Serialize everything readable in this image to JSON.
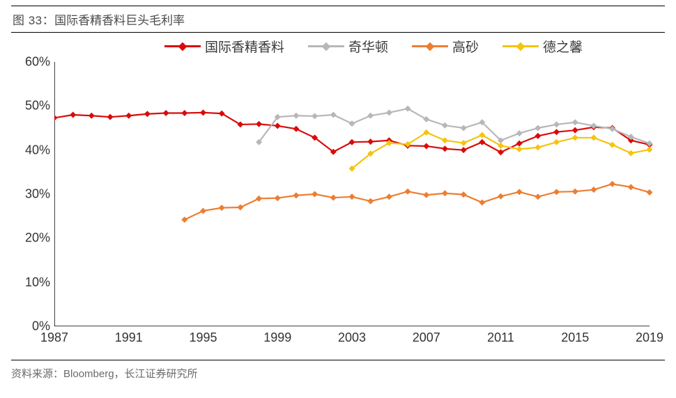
{
  "title": {
    "prefix": "图 33：",
    "text": "国际香精香料巨头毛利率"
  },
  "source_label": "资料来源：",
  "source_text": "Bloomberg，长江证券研究所",
  "chart": {
    "type": "line",
    "background_color": "#ffffff",
    "title_fontsize": 17,
    "label_fontsize": 18,
    "x": {
      "min": 1987,
      "max": 2019,
      "tick_step": 4,
      "ticks": [
        1987,
        1991,
        1995,
        1999,
        2003,
        2007,
        2011,
        2015,
        2019
      ]
    },
    "y": {
      "min": 0,
      "max": 60,
      "tick_step": 10,
      "suffix": "%",
      "ticks": [
        0,
        10,
        20,
        30,
        40,
        50,
        60
      ]
    },
    "axis_color": "#000000",
    "line_width": 2.2,
    "marker": {
      "shape": "diamond",
      "size": 9
    },
    "legend": {
      "position": "top",
      "fontsize": 19
    },
    "series": [
      {
        "key": "iff",
        "label": "国际香精香料",
        "color": "#d90b0b",
        "points": [
          [
            1987,
            47.3
          ],
          [
            1988,
            48.0
          ],
          [
            1989,
            47.8
          ],
          [
            1990,
            47.5
          ],
          [
            1991,
            47.8
          ],
          [
            1992,
            48.2
          ],
          [
            1993,
            48.4
          ],
          [
            1994,
            48.4
          ],
          [
            1995,
            48.5
          ],
          [
            1996,
            48.3
          ],
          [
            1997,
            45.8
          ],
          [
            1998,
            45.9
          ],
          [
            1999,
            45.5
          ],
          [
            2000,
            44.8
          ],
          [
            2001,
            42.8
          ],
          [
            2002,
            39.6
          ],
          [
            2003,
            41.8
          ],
          [
            2004,
            41.9
          ],
          [
            2005,
            42.2
          ],
          [
            2006,
            41.0
          ],
          [
            2007,
            40.9
          ],
          [
            2008,
            40.3
          ],
          [
            2009,
            40.0
          ],
          [
            2010,
            41.8
          ],
          [
            2011,
            39.5
          ],
          [
            2012,
            41.5
          ],
          [
            2013,
            43.2
          ],
          [
            2014,
            44.1
          ],
          [
            2015,
            44.5
          ],
          [
            2016,
            45.2
          ],
          [
            2017,
            45.0
          ],
          [
            2018,
            42.2
          ],
          [
            2019,
            41.2
          ]
        ]
      },
      {
        "key": "givaudan",
        "label": "奇华顿",
        "color": "#b7b7b7",
        "points": [
          [
            1998,
            41.8
          ],
          [
            1999,
            47.5
          ],
          [
            2000,
            47.8
          ],
          [
            2001,
            47.7
          ],
          [
            2002,
            48.0
          ],
          [
            2003,
            46.0
          ],
          [
            2004,
            47.8
          ],
          [
            2005,
            48.5
          ],
          [
            2006,
            49.4
          ],
          [
            2007,
            47.0
          ],
          [
            2008,
            45.6
          ],
          [
            2009,
            45.0
          ],
          [
            2010,
            46.3
          ],
          [
            2011,
            42.2
          ],
          [
            2012,
            43.8
          ],
          [
            2013,
            45.0
          ],
          [
            2014,
            45.8
          ],
          [
            2015,
            46.3
          ],
          [
            2016,
            45.5
          ],
          [
            2017,
            44.8
          ],
          [
            2018,
            43.0
          ],
          [
            2019,
            41.5
          ]
        ]
      },
      {
        "key": "takasago",
        "label": "高砂",
        "color": "#ed7d31",
        "points": [
          [
            1994,
            24.2
          ],
          [
            1995,
            26.2
          ],
          [
            1996,
            26.9
          ],
          [
            1997,
            27.0
          ],
          [
            1998,
            29.0
          ],
          [
            1999,
            29.1
          ],
          [
            2000,
            29.7
          ],
          [
            2001,
            30.0
          ],
          [
            2002,
            29.2
          ],
          [
            2003,
            29.4
          ],
          [
            2004,
            28.4
          ],
          [
            2005,
            29.4
          ],
          [
            2006,
            30.6
          ],
          [
            2007,
            29.8
          ],
          [
            2008,
            30.2
          ],
          [
            2009,
            29.9
          ],
          [
            2010,
            28.1
          ],
          [
            2011,
            29.5
          ],
          [
            2012,
            30.5
          ],
          [
            2013,
            29.4
          ],
          [
            2014,
            30.5
          ],
          [
            2015,
            30.6
          ],
          [
            2016,
            31.0
          ],
          [
            2017,
            32.3
          ],
          [
            2018,
            31.6
          ],
          [
            2019,
            30.4
          ]
        ]
      },
      {
        "key": "symrise",
        "label": "德之馨",
        "color": "#f4c40f",
        "points": [
          [
            2003,
            35.8
          ],
          [
            2004,
            39.2
          ],
          [
            2005,
            41.6
          ],
          [
            2006,
            41.3
          ],
          [
            2007,
            44.0
          ],
          [
            2008,
            42.2
          ],
          [
            2009,
            41.6
          ],
          [
            2010,
            43.4
          ],
          [
            2011,
            41.0
          ],
          [
            2012,
            40.2
          ],
          [
            2013,
            40.6
          ],
          [
            2014,
            41.8
          ],
          [
            2015,
            42.8
          ],
          [
            2016,
            42.8
          ],
          [
            2017,
            41.2
          ],
          [
            2018,
            39.3
          ],
          [
            2019,
            40.1
          ]
        ]
      }
    ]
  }
}
